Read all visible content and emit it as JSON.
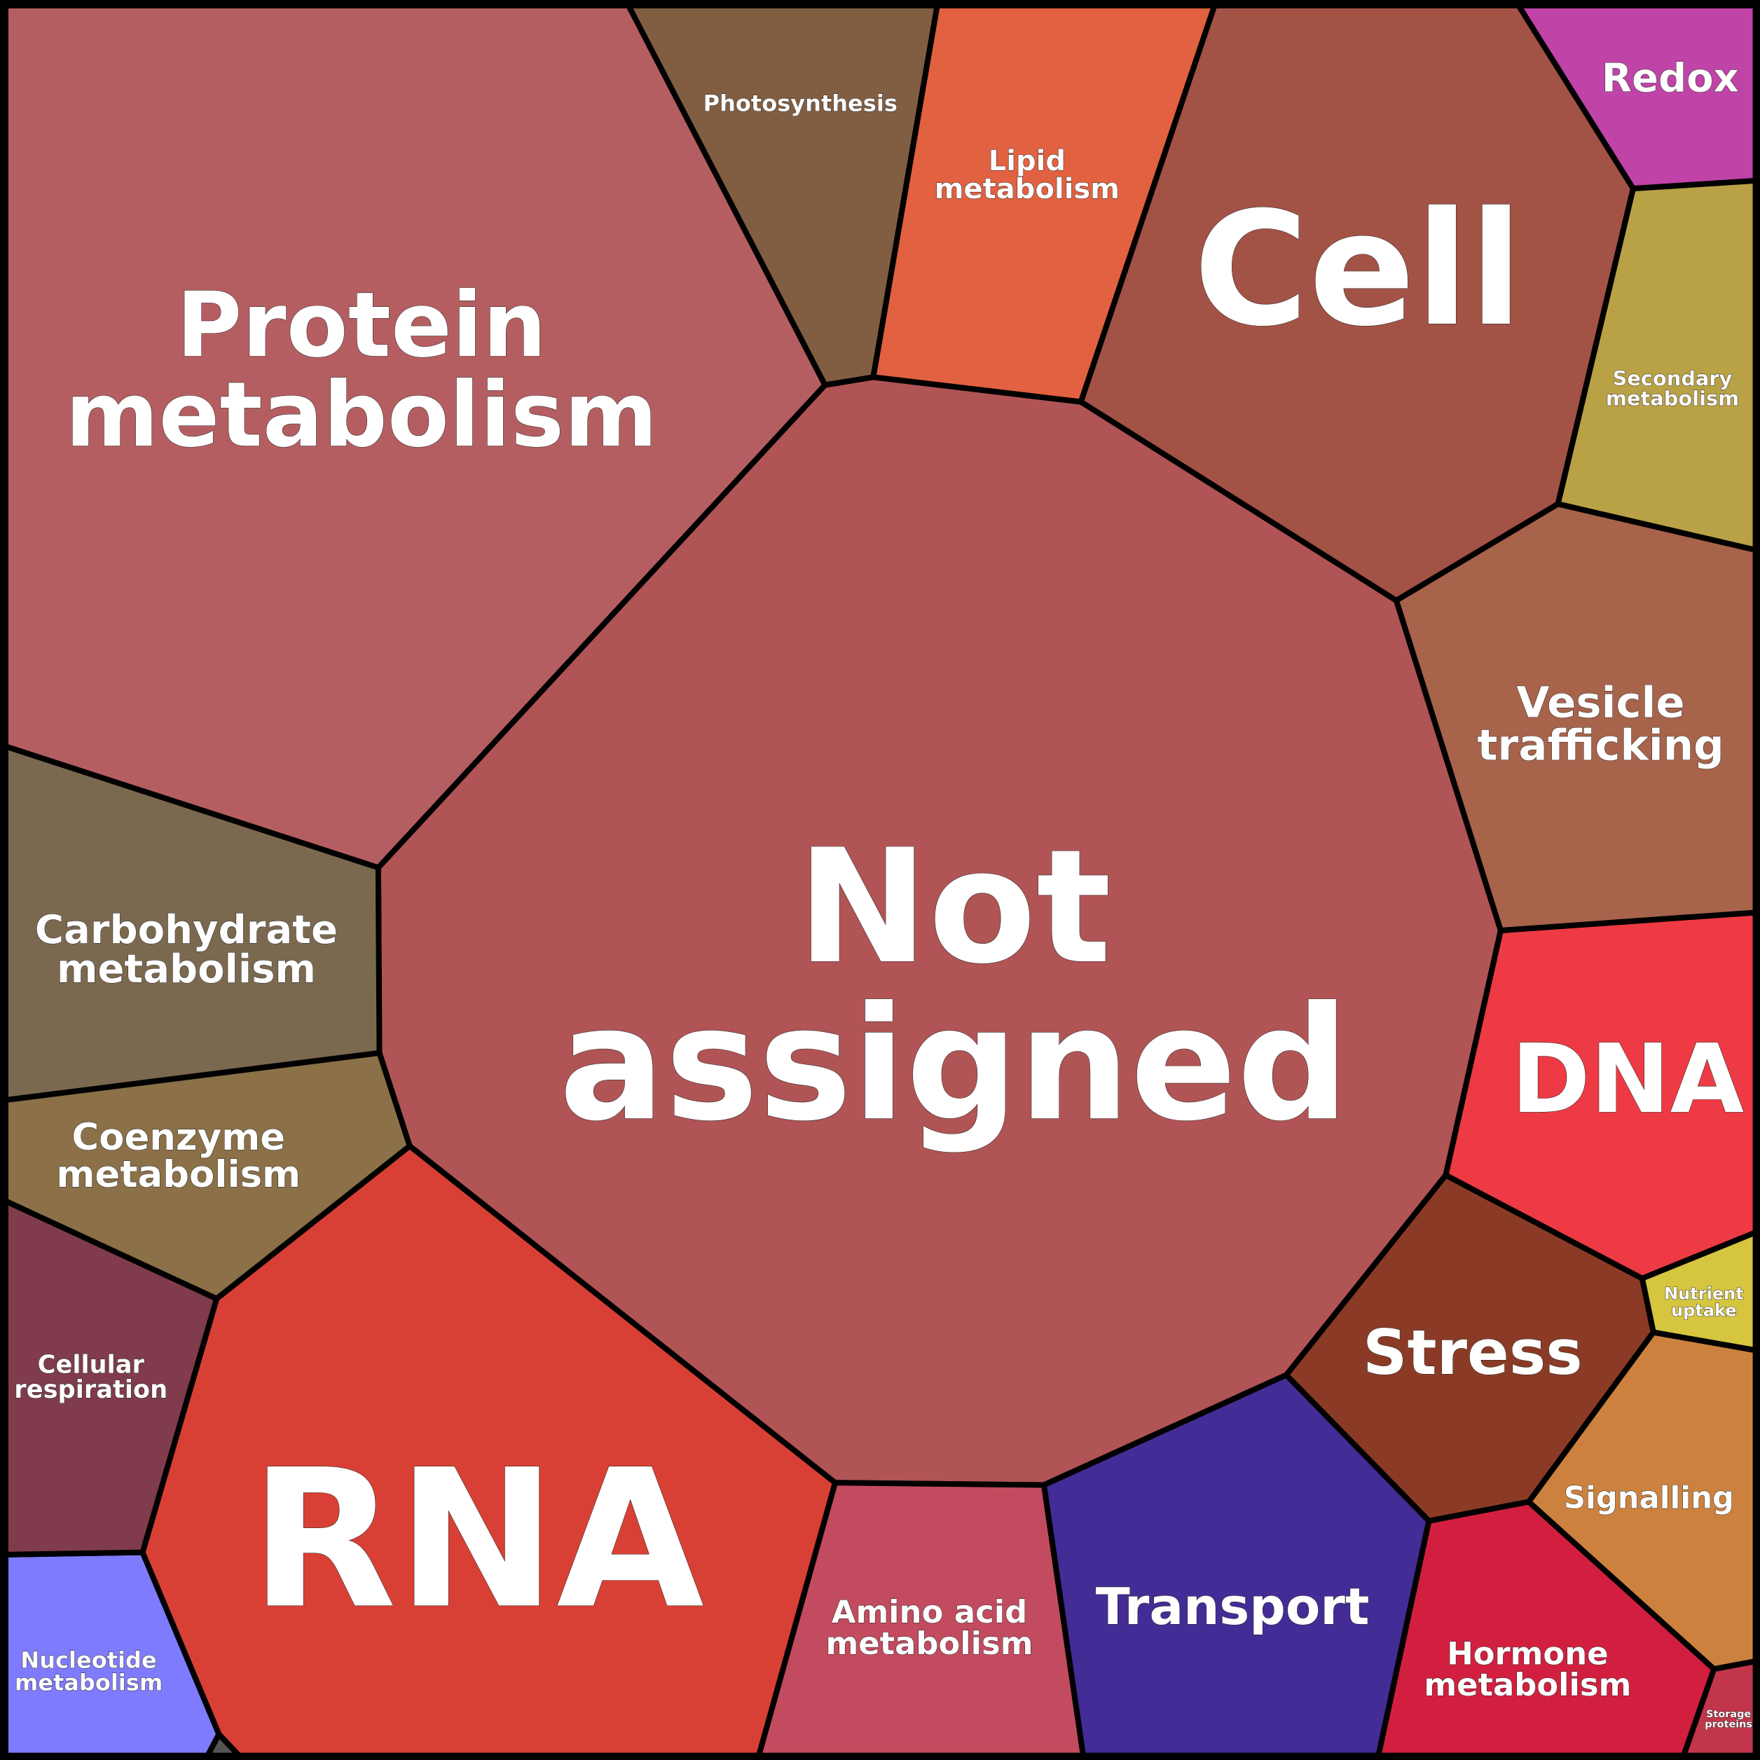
{
  "cells": [
    {
      "lines": [
        "Not",
        "assigned"
      ],
      "color": "#b05455"
    },
    {
      "lines": [
        "Protein",
        "metabolism"
      ],
      "color": "#b55e61"
    },
    {
      "lines": [
        "Photosynthesis"
      ],
      "color": "#815e42"
    },
    {
      "lines": [
        "Lipid",
        "metabolism"
      ],
      "color": "#e26140"
    },
    {
      "lines": [
        "Cell"
      ],
      "color": "#a35246"
    },
    {
      "lines": [
        "Redox"
      ],
      "color": "#c043a8"
    },
    {
      "lines": [
        "Secondary",
        "metabolism"
      ],
      "color": "#b9a145"
    },
    {
      "lines": [
        "Vesicle",
        "trafficking"
      ],
      "color": "#a8634b"
    },
    {
      "lines": [
        "DNA"
      ],
      "color": "#ee3a44"
    },
    {
      "lines": [
        "Nutrient",
        "uptake"
      ],
      "color": "#d5c53f"
    },
    {
      "lines": [
        "Stress"
      ],
      "color": "#8b3b25"
    },
    {
      "lines": [
        "Signalling"
      ],
      "color": "#cc823e"
    },
    {
      "lines": [
        "Hormone",
        "metabolism"
      ],
      "color": "#d21f40"
    },
    {
      "lines": [
        "Storage",
        "proteins"
      ],
      "color": "#c1364a"
    },
    {
      "lines": [
        "Transport"
      ],
      "color": "#432c95"
    },
    {
      "lines": [
        "Amino acid",
        "metabolism"
      ],
      "color": "#c34b5f"
    },
    {
      "lines": [
        "RNA"
      ],
      "color": "#d94035"
    },
    {
      "lines": [
        "Nucleotide",
        "metabolism"
      ],
      "color": "#7f7bfe"
    },
    {
      "lines": [
        "Cellular",
        "respiration"
      ],
      "color": "#803c4c"
    },
    {
      "lines": [
        "Coenzyme",
        "metabolism"
      ],
      "color": "#8b7048"
    },
    {
      "lines": [
        "Carbohydrate",
        "metabolism"
      ],
      "color": "#7b694f"
    }
  ]
}
